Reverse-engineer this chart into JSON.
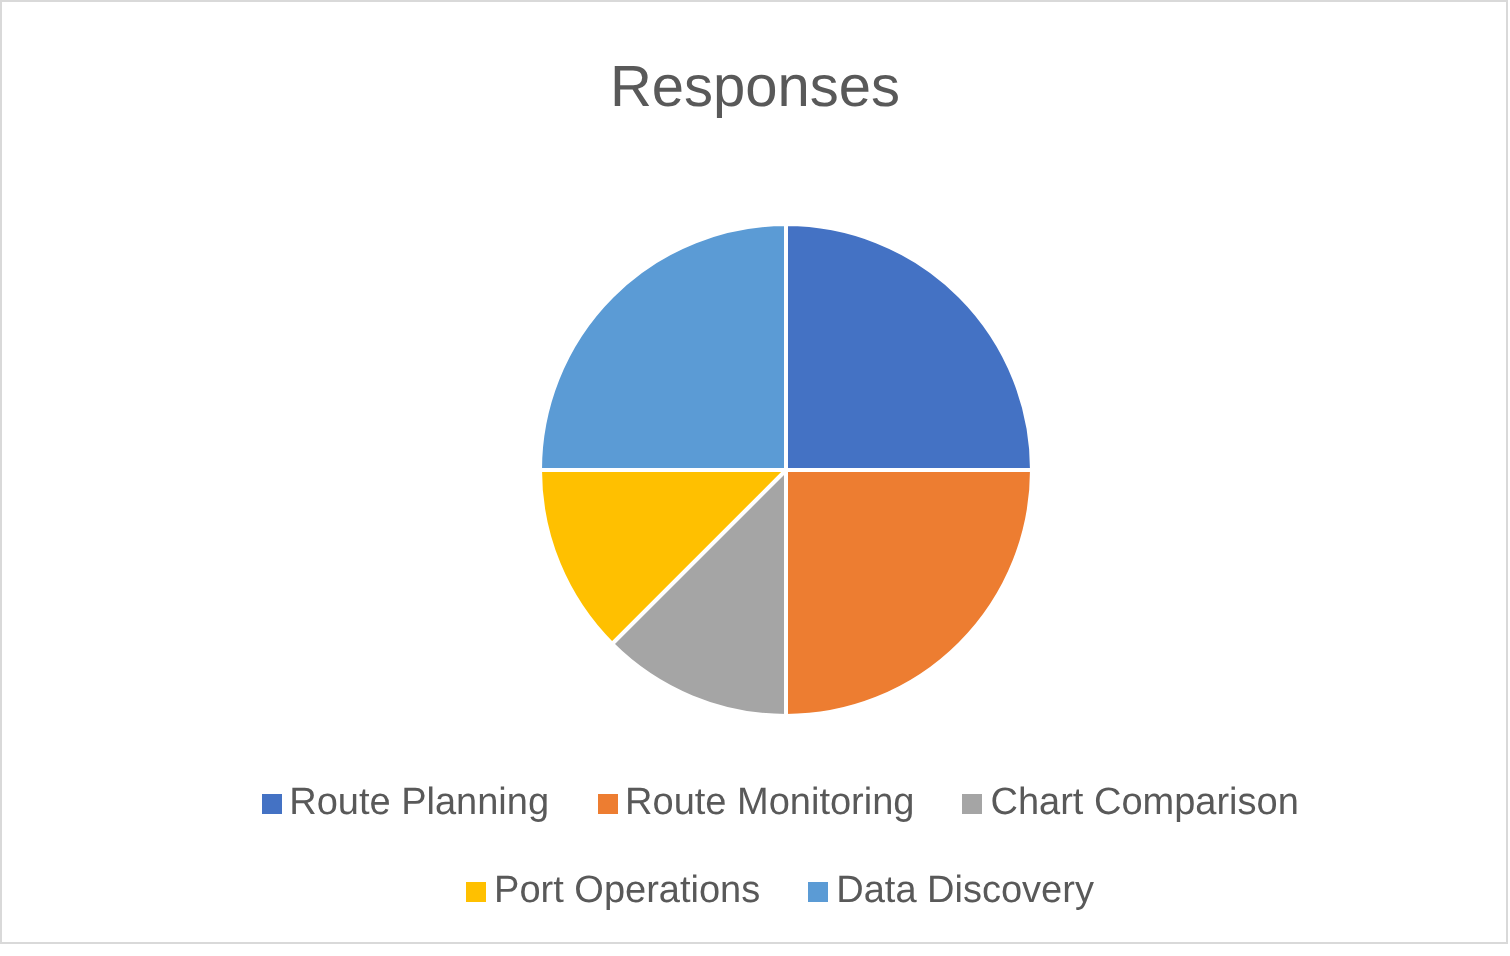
{
  "chart_data": {
    "type": "pie",
    "title": "Responses",
    "categories": [
      "Route Planning",
      "Route Monitoring",
      "Chart Comparison",
      "Port Operations",
      "Data Discovery"
    ],
    "values": [
      25,
      25,
      12.5,
      12.5,
      25
    ],
    "colors": [
      "#4472c4",
      "#ed7d31",
      "#a5a5a5",
      "#ffc000",
      "#5b9bd5"
    ],
    "legend": "bottom"
  }
}
